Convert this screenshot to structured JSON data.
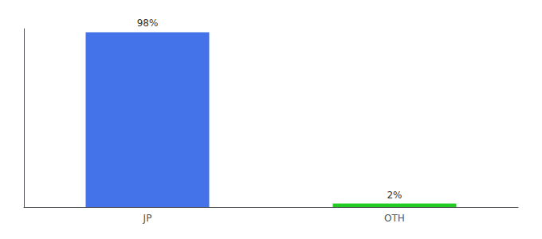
{
  "chart_data": {
    "type": "bar",
    "categories": [
      "JP",
      "OTH"
    ],
    "values": [
      98,
      2
    ],
    "value_labels": [
      "98%",
      "2%"
    ],
    "colors": [
      "#4472e8",
      "#22cc22"
    ],
    "data_labels": true,
    "ylim": [
      0,
      100
    ],
    "tick_labels": "x",
    "grid": false
  }
}
